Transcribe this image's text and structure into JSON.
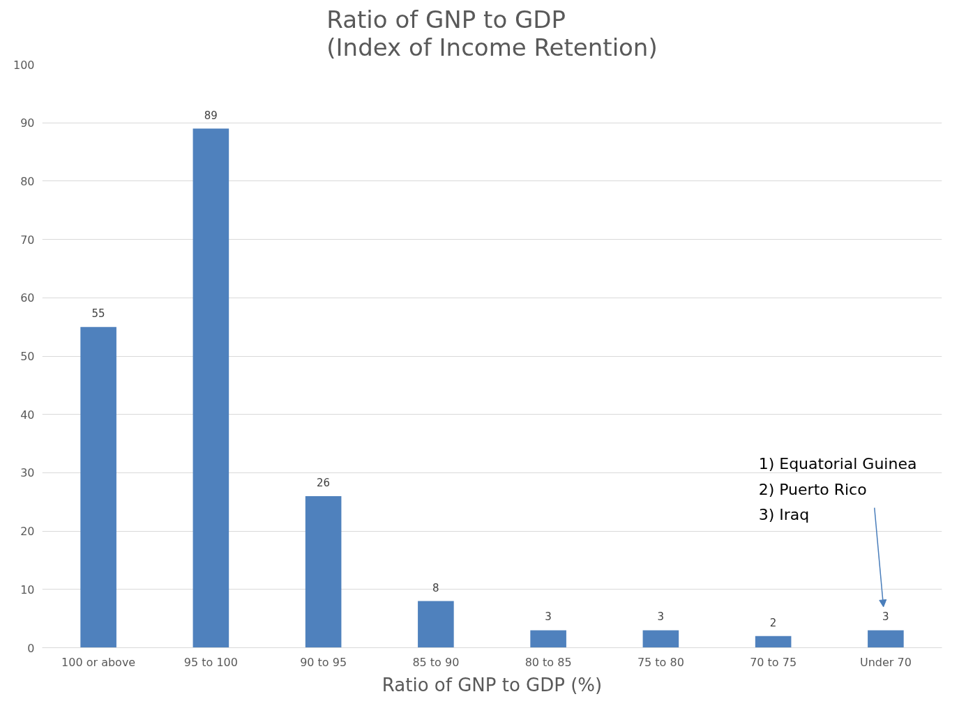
{
  "chart_data": {
    "type": "bar",
    "title": "Ratio of GNP to GDP\n(Index of Income Retention)",
    "xlabel": "Ratio of GNP to GDP (%)",
    "categories": [
      "100 or above",
      "95 to 100",
      "90 to 95",
      "85 to 90",
      "80 to 85",
      "75 to 80",
      "70 to 75",
      "Under 70"
    ],
    "values": [
      55,
      89,
      26,
      8,
      3,
      3,
      2,
      3
    ],
    "color": "#4f81bd",
    "ylim": [
      0,
      100
    ],
    "yticks": [
      0,
      10,
      20,
      30,
      40,
      50,
      60,
      70,
      80,
      90,
      100
    ],
    "grid": "y",
    "data_labels": true,
    "annotations": [
      "1) Equatorial Guinea\n2) Puerto Rico\n3) Iraq"
    ]
  }
}
